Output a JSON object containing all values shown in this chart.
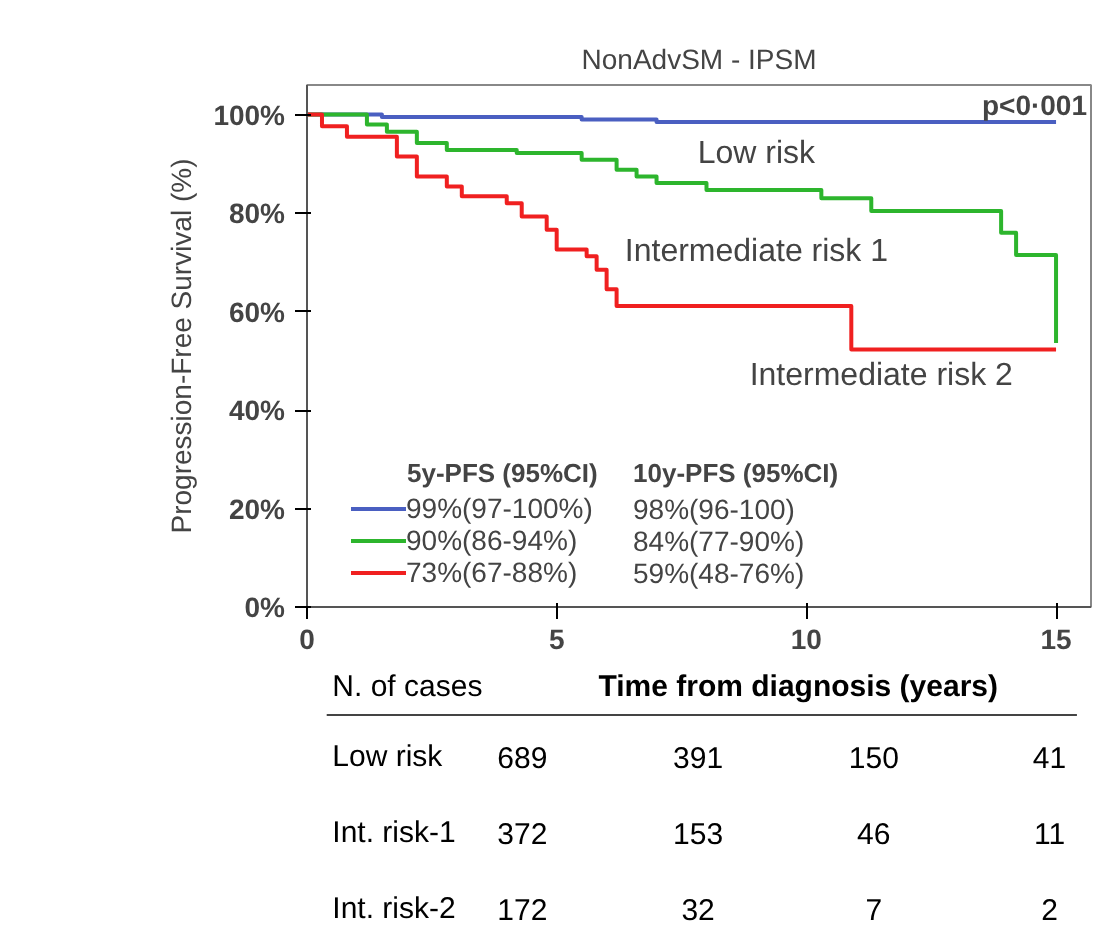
{
  "chart_data": {
    "type": "step",
    "title": "NonAdvSM - IPSM",
    "xlabel": "Time from diagnosis (years)",
    "ylabel": "Progression-Free Survival (%)",
    "series": [
      {
        "name": "99%(97-100%)",
        "color": "#4a5fc1",
        "x": [
          0,
          1.5,
          5.5,
          7.0,
          15.0
        ],
        "values": [
          100,
          99.5,
          99,
          98.5,
          98.5
        ]
      },
      {
        "name": "90%(86-94%)",
        "color": "#2db52d",
        "x": [
          0,
          0.8,
          1.2,
          1.6,
          2.2,
          2.8,
          4.2,
          5.5,
          6.2,
          6.6,
          7.0,
          8.0,
          10.3,
          11.3,
          13.9,
          14.2,
          15.0
        ],
        "values": [
          100,
          100,
          98,
          96.5,
          94.2,
          92.8,
          92.2,
          90.8,
          88.8,
          87.4,
          86.1,
          84.7,
          83,
          80.4,
          76,
          71.5,
          53.6
        ]
      },
      {
        "name": "73%(67-88%)",
        "color": "#f02020",
        "x": [
          0,
          0.3,
          0.8,
          1.8,
          2.2,
          2.8,
          3.1,
          4.0,
          4.3,
          4.8,
          5.0,
          5.6,
          5.8,
          6.0,
          6.2,
          10.9,
          15.0
        ],
        "values": [
          100,
          97.6,
          95.5,
          91.5,
          87.4,
          85.4,
          83.4,
          82,
          79.3,
          76.6,
          72.6,
          71.2,
          68.5,
          64.5,
          61.1,
          52.3,
          52.3
        ]
      }
    ],
    "xlim": [
      0,
      15.7
    ],
    "xticks": [
      0,
      5,
      10,
      15
    ],
    "ylim": [
      0,
      106
    ],
    "yticks": [
      {
        "value": 0,
        "label": "0%"
      },
      {
        "value": 20,
        "label": "20%"
      },
      {
        "value": 40,
        "label": "40%"
      },
      {
        "value": 60,
        "label": "60%"
      },
      {
        "value": 80,
        "label": "80%"
      },
      {
        "value": 100,
        "label": "100%"
      }
    ],
    "grid": false,
    "legend": "bottom left",
    "annotations": [
      "p<0·001",
      "5y-PFS (95%CI)",
      "10y-PFS (95%CI)",
      "98%(96-100)",
      "84%(77-90%)",
      "59%(48-76%)",
      "N. of cases",
      "Low risk",
      "689",
      "391",
      "150",
      "41",
      "Int. risk-1",
      "372",
      "153",
      "46",
      "11",
      "Int. risk-2",
      "172",
      "32",
      "7",
      "2",
      "Low risk",
      "Intermediate risk 1",
      "Intermediate risk 2"
    ]
  }
}
